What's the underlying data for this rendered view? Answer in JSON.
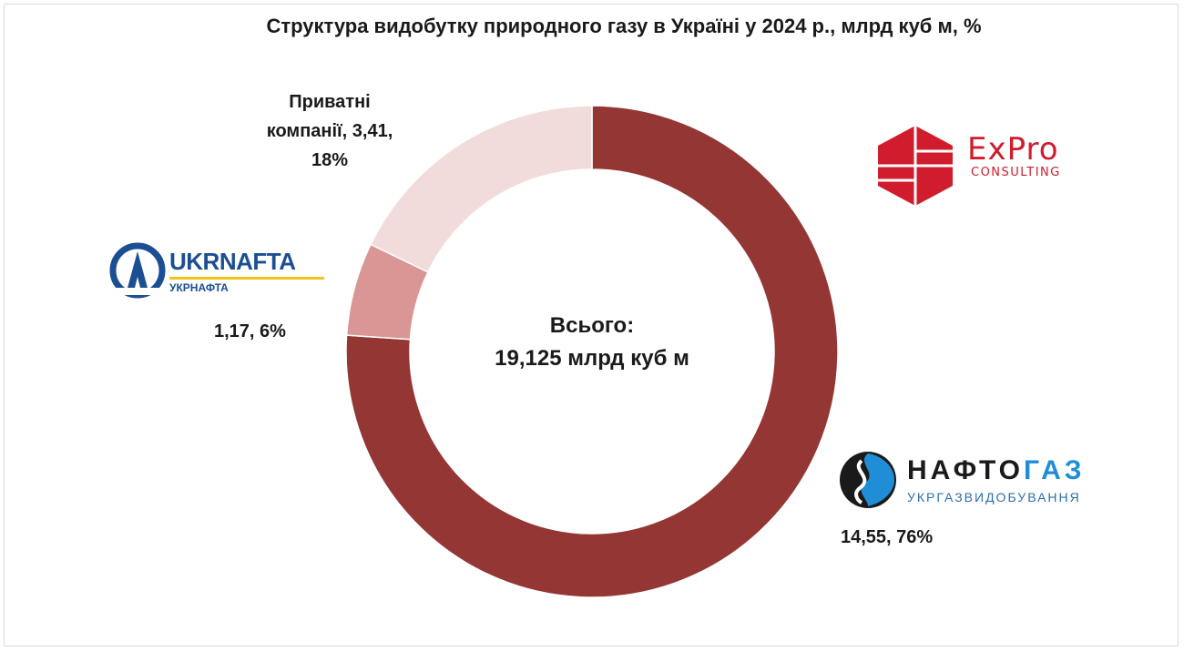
{
  "chart_data": {
    "type": "pie",
    "title": "Структура видобутку природного газу в Україні у 2024 р., млрд куб м, %",
    "center_label": [
      "Всього:",
      "19,125 млрд куб м"
    ],
    "categories": [
      "Нафтогаз",
      "Укрнафта",
      "Приватні компанії"
    ],
    "values": [
      14.55,
      1.17,
      3.41
    ],
    "percentages": [
      76,
      6,
      18
    ],
    "colors": [
      "#943634",
      "#d99694",
      "#f2dcdb"
    ],
    "data_labels": {
      "private": [
        "Приватні",
        "компанії, 3,41,",
        "18%"
      ],
      "ukrnafta": "1,17, 6%",
      "naftogaz": "14,55, 76%"
    }
  },
  "logos": {
    "expro": {
      "name": "ExPro",
      "sub": "CONSULTING",
      "color": "#d01c2c"
    },
    "ukrnafta": {
      "name": "UKRNAFTA",
      "sub": "УКРНАФТА",
      "color": "#1b4e93",
      "accent": "#f3c318"
    },
    "naftogaz": {
      "name_part1": "НАФТО",
      "name_part2": "ГАЗ",
      "sub": "УКРГАЗВИДОБУВАННЯ",
      "color": "#1a1a1a",
      "accent": "#1f8ed6"
    }
  }
}
